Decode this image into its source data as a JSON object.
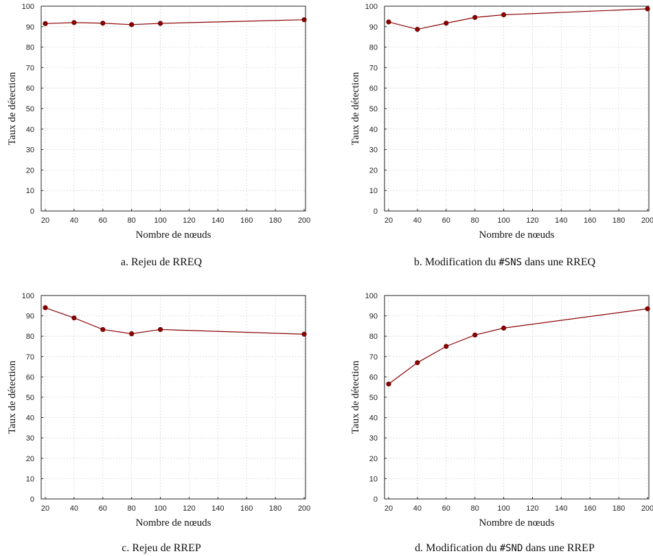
{
  "style": {
    "series_color": "#8b0000",
    "grid": "dotted"
  },
  "chart_data": [
    {
      "type": "line",
      "x": [
        20,
        40,
        60,
        80,
        100,
        200
      ],
      "xticks": [
        "20",
        "40",
        "60",
        "80",
        "100",
        "120",
        "140",
        "160",
        "180",
        "200"
      ],
      "series": [
        {
          "values": [
            91.5,
            92,
            91.7,
            91,
            91.6,
            93.4
          ]
        }
      ],
      "xlabel": "Nombre de nœuds",
      "ylabel": "Taux de détection",
      "ylim": [
        0,
        100
      ],
      "yticks": [
        "0",
        "10",
        "20",
        "30",
        "40",
        "50",
        "60",
        "70",
        "80",
        "90",
        "100"
      ],
      "caption": {
        "prefix": "a. Rejeu de RREQ",
        "code": "",
        "suffix": ""
      }
    },
    {
      "type": "line",
      "x": [
        20,
        40,
        60,
        80,
        100,
        200
      ],
      "xticks": [
        "20",
        "40",
        "60",
        "80",
        "100",
        "120",
        "140",
        "160",
        "180",
        "200"
      ],
      "series": [
        {
          "values": [
            92.3,
            88.7,
            91.7,
            94.5,
            95.8,
            98.7
          ]
        }
      ],
      "xlabel": "Nombre de nœuds",
      "ylabel": "Taux de détection",
      "ylim": [
        0,
        100
      ],
      "yticks": [
        "0",
        "10",
        "20",
        "30",
        "40",
        "50",
        "60",
        "70",
        "80",
        "90",
        "100"
      ],
      "caption": {
        "prefix": "b. Modification du ",
        "code": "#SNS",
        "suffix": " dans une RREQ"
      }
    },
    {
      "type": "line",
      "x": [
        20,
        40,
        60,
        80,
        100,
        200
      ],
      "xticks": [
        "20",
        "40",
        "60",
        "80",
        "100",
        "120",
        "140",
        "160",
        "180",
        "200"
      ],
      "series": [
        {
          "values": [
            94,
            89,
            83.3,
            81.2,
            83.3,
            81
          ]
        }
      ],
      "xlabel": "Nombre de nœuds",
      "ylabel": "Taux de détection",
      "ylim": [
        0,
        100
      ],
      "yticks": [
        "0",
        "10",
        "20",
        "30",
        "40",
        "50",
        "60",
        "70",
        "80",
        "90",
        "100"
      ],
      "caption": {
        "prefix": "c. Rejeu de RREP",
        "code": "",
        "suffix": ""
      }
    },
    {
      "type": "line",
      "x": [
        20,
        40,
        60,
        80,
        100,
        200
      ],
      "xticks": [
        "20",
        "40",
        "60",
        "80",
        "100",
        "120",
        "140",
        "160",
        "180",
        "200"
      ],
      "series": [
        {
          "values": [
            56.5,
            67,
            75,
            80.6,
            84,
            93.5
          ]
        }
      ],
      "xlabel": "Nombre de nœuds",
      "ylabel": "Taux de détection",
      "ylim": [
        0,
        100
      ],
      "yticks": [
        "0",
        "10",
        "20",
        "30",
        "40",
        "50",
        "60",
        "70",
        "80",
        "90",
        "100"
      ],
      "caption": {
        "prefix": "d. Modification du ",
        "code": "#SND",
        "suffix": " dans une RREP"
      }
    }
  ]
}
